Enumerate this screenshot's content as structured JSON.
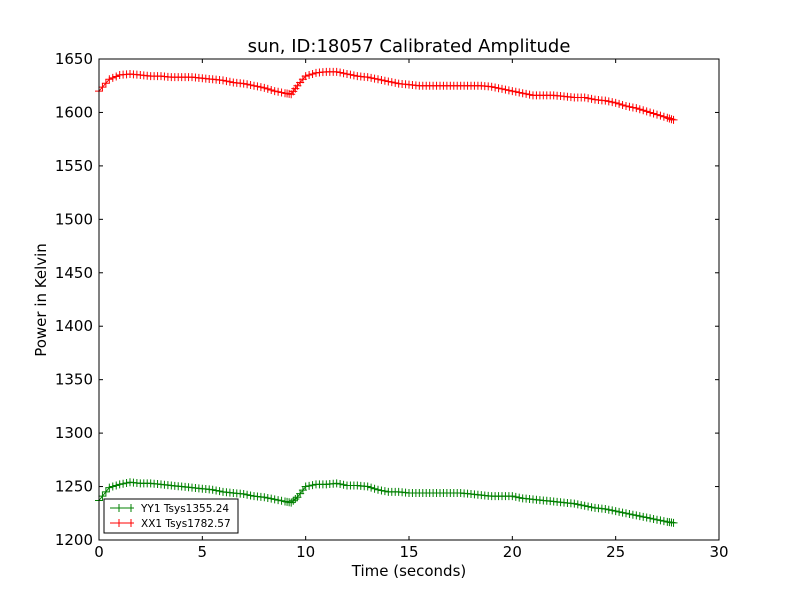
{
  "chart_data": {
    "type": "line",
    "title": "sun, ID:18057 Calibrated Amplitude",
    "xlabel": "Time (seconds)",
    "ylabel": "Power in Kelvin",
    "xlim": [
      0,
      30
    ],
    "ylim": [
      1200,
      1650
    ],
    "xticks": [
      0,
      5,
      10,
      15,
      20,
      25,
      30
    ],
    "yticks": [
      1200,
      1250,
      1300,
      1350,
      1400,
      1450,
      1500,
      1550,
      1600,
      1650
    ],
    "grid": false,
    "legend_position": "lower-left",
    "marker": "plus",
    "series": [
      {
        "name": "YY1 Tsys1355.24",
        "color": "#008000",
        "x": [
          0.0,
          0.5,
          1.0,
          1.5,
          2.0,
          2.5,
          3.0,
          3.5,
          4.0,
          4.5,
          5.0,
          5.5,
          6.0,
          6.5,
          7.0,
          7.5,
          8.0,
          8.5,
          9.0,
          9.3,
          9.6,
          10.0,
          10.5,
          11.0,
          11.5,
          12.0,
          12.5,
          13.0,
          13.5,
          14.0,
          14.5,
          15.0,
          15.5,
          16.0,
          16.5,
          17.0,
          17.5,
          18.0,
          18.5,
          19.0,
          19.5,
          20.0,
          20.5,
          21.0,
          21.5,
          22.0,
          22.5,
          23.0,
          23.5,
          24.0,
          24.5,
          25.0,
          25.5,
          26.0,
          26.5,
          27.0,
          27.5,
          27.8
        ],
        "values": [
          1237,
          1249,
          1252,
          1254,
          1253,
          1253,
          1252,
          1251,
          1250,
          1249,
          1248,
          1247,
          1245,
          1244,
          1243,
          1241,
          1240,
          1238,
          1236,
          1235,
          1240,
          1250,
          1252,
          1252,
          1253,
          1251,
          1251,
          1250,
          1247,
          1245,
          1245,
          1244,
          1244,
          1244,
          1244,
          1244,
          1244,
          1243,
          1242,
          1241,
          1241,
          1241,
          1239,
          1238,
          1237,
          1236,
          1235,
          1234,
          1232,
          1230,
          1229,
          1227,
          1225,
          1223,
          1221,
          1219,
          1217,
          1216
        ]
      },
      {
        "name": "XX1 Tsys1782.57",
        "color": "#ff0000",
        "x": [
          0.0,
          0.5,
          1.0,
          1.5,
          2.0,
          2.5,
          3.0,
          3.5,
          4.0,
          4.5,
          5.0,
          5.5,
          6.0,
          6.5,
          7.0,
          7.5,
          8.0,
          8.5,
          9.0,
          9.3,
          9.6,
          10.0,
          10.5,
          11.0,
          11.5,
          12.0,
          12.5,
          13.0,
          13.5,
          14.0,
          14.5,
          15.0,
          15.5,
          16.0,
          16.5,
          17.0,
          17.5,
          18.0,
          18.5,
          19.0,
          19.5,
          20.0,
          20.5,
          21.0,
          21.5,
          22.0,
          22.5,
          23.0,
          23.5,
          24.0,
          24.5,
          25.0,
          25.5,
          26.0,
          26.5,
          27.0,
          27.5,
          27.8
        ],
        "values": [
          1620,
          1631,
          1635,
          1636,
          1635,
          1634,
          1634,
          1633,
          1633,
          1633,
          1632,
          1631,
          1630,
          1628,
          1627,
          1625,
          1623,
          1620,
          1618,
          1617,
          1625,
          1634,
          1637,
          1638,
          1638,
          1636,
          1634,
          1633,
          1631,
          1629,
          1627,
          1626,
          1625,
          1625,
          1625,
          1625,
          1625,
          1625,
          1625,
          1624,
          1622,
          1620,
          1618,
          1616,
          1616,
          1616,
          1615,
          1614,
          1614,
          1612,
          1611,
          1609,
          1606,
          1604,
          1601,
          1598,
          1595,
          1593
        ]
      }
    ]
  }
}
